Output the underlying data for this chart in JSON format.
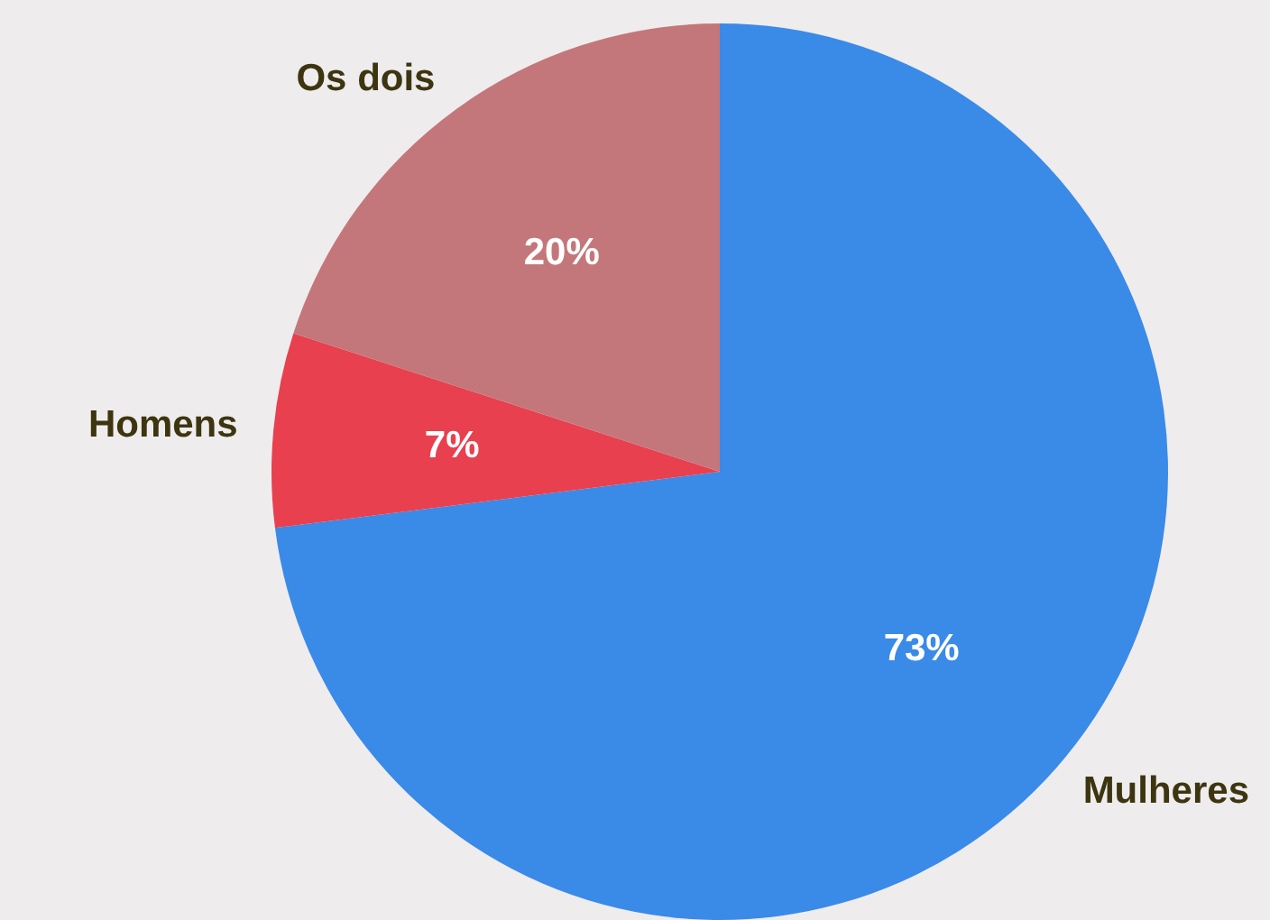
{
  "chart_data": {
    "type": "pie",
    "categories": [
      "Mulheres",
      "Homens",
      "Os dois"
    ],
    "values": [
      73,
      7,
      20
    ],
    "colors": [
      "#3a8ae8",
      "#e8404f",
      "#c4777a"
    ],
    "value_labels": [
      "73%",
      "7%",
      "20%"
    ]
  }
}
